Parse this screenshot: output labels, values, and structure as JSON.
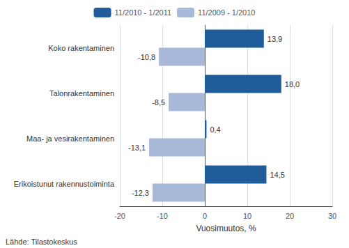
{
  "chart_data": {
    "type": "bar",
    "orientation": "horizontal",
    "categories": [
      "Koko rakentaminen",
      "Talonrakentaminen",
      "Maa- ja vesirakentaminen",
      "Erikoistunut rakennustoiminta"
    ],
    "series": [
      {
        "name": "11/2010 - 1/2011",
        "color": "#1f5c99",
        "values": [
          13.9,
          18.0,
          0.4,
          14.5
        ],
        "value_labels": [
          "13,9",
          "18,0",
          "0,4",
          "14,5"
        ]
      },
      {
        "name": "11/2009 - 1/2010",
        "color": "#a8b8d8",
        "values": [
          -10.8,
          -8.5,
          -13.1,
          -12.3
        ],
        "value_labels": [
          "-10,8",
          "-8,5",
          "-13,1",
          "-12,3"
        ]
      }
    ],
    "xlabel": "Vuosimuutos, %",
    "xlim": [
      -20,
      30
    ],
    "xticks": [
      -20,
      -10,
      0,
      10,
      20,
      30
    ],
    "grid": true,
    "legend": "top",
    "data_labels": true,
    "annotations": [
      "Lähde: Tilastokeskus"
    ]
  }
}
